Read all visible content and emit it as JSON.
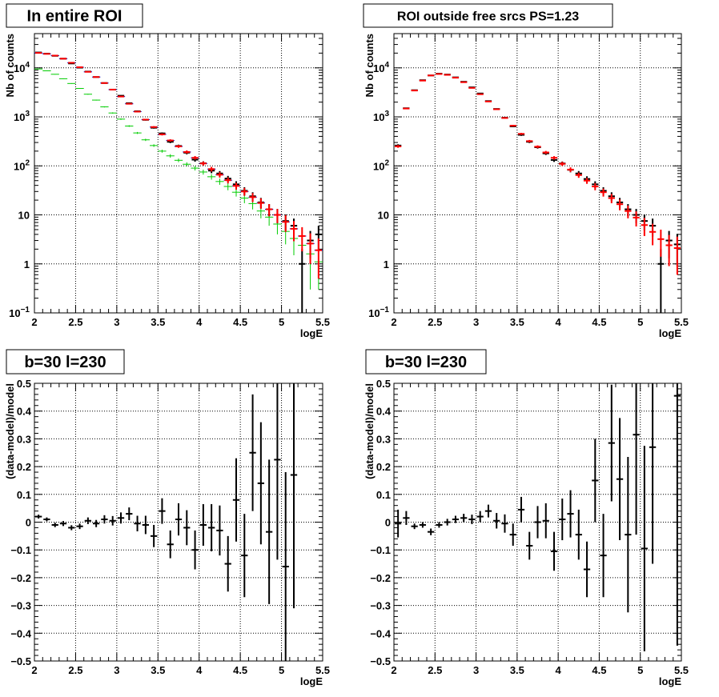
{
  "chart_data": [
    {
      "id": "tl",
      "type": "histogram-errorbars",
      "title": "In entire ROI",
      "xlabel": "logE",
      "ylabel": "Nb of counts",
      "xlim": [
        2,
        5.5
      ],
      "ylim": [
        0.1,
        50000
      ],
      "yscale": "log",
      "grid": true,
      "bin_width": 0.1,
      "xticks": [
        2,
        2.5,
        3,
        3.5,
        4,
        4.5,
        5,
        5.5
      ],
      "ytick_labels": [
        {
          "v": 0.1,
          "text": "10",
          "sup": "−1"
        },
        {
          "v": 1,
          "text": "1",
          "sup": ""
        },
        {
          "v": 10,
          "text": "10",
          "sup": ""
        },
        {
          "v": 100,
          "text": "10",
          "sup": "2"
        },
        {
          "v": 1000,
          "text": "10",
          "sup": "3"
        },
        {
          "v": 10000,
          "text": "10",
          "sup": "4"
        }
      ],
      "series": [
        {
          "color": "#00cc00",
          "x": [
            2.05,
            2.15,
            2.25,
            2.35,
            2.45,
            2.55,
            2.65,
            2.75,
            2.85,
            2.95,
            3.05,
            3.15,
            3.25,
            3.35,
            3.45,
            3.55,
            3.65,
            3.75,
            3.85,
            3.95,
            4.05,
            4.15,
            4.25,
            4.35,
            4.45,
            4.55,
            4.65,
            4.75,
            4.85,
            4.95,
            5.05,
            5.15,
            5.25,
            5.35,
            5.45
          ],
          "y": [
            9500,
            8700,
            7400,
            6000,
            4800,
            3800,
            2900,
            2200,
            1600,
            1200,
            900,
            650,
            470,
            340,
            260,
            200,
            160,
            130,
            108,
            90,
            75,
            60,
            48,
            38,
            29,
            22,
            17,
            12,
            9,
            6.5,
            4.6,
            3.3,
            2.4,
            1.6,
            1.1
          ],
          "err": [
            97,
            93,
            86,
            77,
            69,
            62,
            54,
            47,
            40,
            35,
            30,
            25,
            22,
            18,
            16,
            14,
            13,
            11,
            10,
            9.5,
            8.7,
            7.7,
            6.9,
            6.2,
            5.4,
            4.7,
            4.1,
            3.5,
            3.0,
            2.5,
            2.1,
            1.8,
            1.5,
            1.3,
            0.8
          ]
        },
        {
          "color": "#0000cc",
          "x": [
            2.05,
            2.15,
            2.25,
            2.35,
            2.45,
            2.55,
            2.65,
            2.75,
            2.85,
            2.95,
            3.05,
            3.15,
            3.25,
            3.35,
            3.45,
            3.55,
            3.65,
            3.75,
            3.85,
            3.95,
            4.05,
            4.15,
            4.25,
            4.35,
            4.45,
            4.55,
            4.65,
            4.75,
            4.85,
            4.95,
            5.05,
            5.15,
            5.25,
            5.35,
            5.45
          ],
          "y": [
            20000,
            19300,
            17800,
            15400,
            12700,
            10300,
            8300,
            6500,
            4900,
            3600,
            2600,
            1850,
            1280,
            880,
            620,
            440,
            330,
            250,
            192,
            146,
            112,
            86,
            66,
            51,
            39,
            30,
            23,
            17.5,
            13,
            10,
            7.2,
            5.2,
            3.7,
            2.6,
            1.9
          ],
          "err": [
            140,
            139,
            133,
            124,
            113,
            101,
            91,
            81,
            70,
            60,
            51,
            43,
            36,
            30,
            25,
            21,
            18,
            16,
            14,
            12,
            10.6,
            9.3,
            8.1,
            7.1,
            6.2,
            5.5,
            4.8,
            4.2,
            3.6,
            3.2,
            2.7,
            2.3,
            1.9,
            1.6,
            1.4
          ]
        },
        {
          "color": "#000000",
          "x": [
            2.05,
            2.15,
            2.25,
            2.35,
            2.45,
            2.55,
            2.65,
            2.75,
            2.85,
            2.95,
            3.05,
            3.15,
            3.25,
            3.35,
            3.45,
            3.55,
            3.65,
            3.75,
            3.85,
            3.95,
            4.05,
            4.15,
            4.25,
            4.35,
            4.45,
            4.55,
            4.65,
            4.75,
            4.85,
            4.95,
            5.05,
            5.15,
            5.25,
            5.35,
            5.45
          ],
          "y": [
            20600,
            19500,
            17600,
            15400,
            12300,
            10100,
            8400,
            6500,
            4900,
            3600,
            2700,
            1900,
            1300,
            870,
            600,
            460,
            310,
            255,
            186,
            134,
            113,
            80,
            70,
            55,
            42,
            31,
            24,
            18,
            13,
            10,
            7.5,
            6,
            1,
            3,
            4
          ],
          "err": [
            143,
            140,
            133,
            124,
            111,
            100,
            92,
            81,
            70,
            60,
            52,
            44,
            36,
            29,
            24,
            21,
            18,
            16,
            14,
            12,
            11,
            9,
            8.4,
            7.4,
            6.5,
            5.6,
            4.9,
            4.2,
            3.6,
            3.2,
            2.7,
            2.4,
            1.0,
            1.7,
            2.0
          ]
        },
        {
          "color": "#ff0000",
          "x": [
            2.05,
            2.15,
            2.25,
            2.35,
            2.45,
            2.55,
            2.65,
            2.75,
            2.85,
            2.95,
            3.05,
            3.15,
            3.25,
            3.35,
            3.45,
            3.55,
            3.65,
            3.75,
            3.85,
            3.95,
            4.05,
            4.15,
            4.25,
            4.35,
            4.45,
            4.55,
            4.65,
            4.75,
            4.85,
            4.95,
            5.05,
            5.15,
            5.25,
            5.35,
            5.45
          ],
          "y": [
            20200,
            19300,
            17800,
            15400,
            12700,
            10300,
            8300,
            6500,
            4900,
            3600,
            2600,
            1850,
            1280,
            880,
            620,
            440,
            330,
            250,
            192,
            146,
            112,
            86,
            66,
            51,
            39,
            30,
            23,
            17.5,
            13,
            10,
            7.2,
            5.2,
            3.7,
            2.6,
            1.9
          ],
          "err": [
            140,
            139,
            133,
            124,
            113,
            101,
            91,
            81,
            70,
            60,
            51,
            43,
            36,
            30,
            25,
            21,
            18,
            16,
            14,
            12,
            10.6,
            9.3,
            8.1,
            7.1,
            6.2,
            5.5,
            4.8,
            4.2,
            3.6,
            3.2,
            2.7,
            2.3,
            1.9,
            1.6,
            1.4
          ]
        }
      ]
    },
    {
      "id": "tr",
      "type": "histogram-errorbars",
      "title": "ROI outside free srcs PS=1.23",
      "xlabel": "logE",
      "ylabel": "Nb of counts",
      "xlim": [
        2,
        5.5
      ],
      "ylim": [
        0.1,
        50000
      ],
      "yscale": "log",
      "grid": true,
      "bin_width": 0.1,
      "xticks": [
        2,
        2.5,
        3,
        3.5,
        4,
        4.5,
        5,
        5.5
      ],
      "ytick_labels": [
        {
          "v": 0.1,
          "text": "10",
          "sup": "−1"
        },
        {
          "v": 1,
          "text": "1",
          "sup": ""
        },
        {
          "v": 10,
          "text": "10",
          "sup": ""
        },
        {
          "v": 100,
          "text": "10",
          "sup": "2"
        },
        {
          "v": 1000,
          "text": "10",
          "sup": "3"
        },
        {
          "v": 10000,
          "text": "10",
          "sup": "4"
        }
      ],
      "series": [
        {
          "color": "#000000",
          "x": [
            2.05,
            2.15,
            2.25,
            2.35,
            2.45,
            2.55,
            2.65,
            2.75,
            2.85,
            2.95,
            3.05,
            3.15,
            3.25,
            3.35,
            3.45,
            3.55,
            3.65,
            3.75,
            3.85,
            3.95,
            4.05,
            4.15,
            4.25,
            4.35,
            4.45,
            4.55,
            4.65,
            4.75,
            4.85,
            4.95,
            5.05,
            5.15,
            5.25,
            5.35,
            5.45
          ],
          "y": [
            260,
            1500,
            3500,
            5600,
            7000,
            7600,
            7300,
            6400,
            5200,
            4000,
            3000,
            2100,
            1450,
            960,
            640,
            430,
            310,
            240,
            180,
            132,
            112,
            83,
            70,
            54,
            42,
            31,
            24,
            18,
            13,
            10,
            7.5,
            6,
            1,
            3,
            2.5
          ],
          "err": [
            16,
            39,
            59,
            75,
            84,
            87,
            85,
            80,
            72,
            63,
            55,
            46,
            38,
            31,
            25,
            21,
            18,
            15,
            13,
            11.5,
            10.6,
            9.1,
            8.4,
            7.3,
            6.5,
            5.6,
            4.9,
            4.2,
            3.6,
            3.2,
            2.7,
            2.4,
            1.0,
            1.7,
            1.6
          ]
        },
        {
          "color": "#ff0000",
          "x": [
            2.05,
            2.15,
            2.25,
            2.35,
            2.45,
            2.55,
            2.65,
            2.75,
            2.85,
            2.95,
            3.05,
            3.15,
            3.25,
            3.35,
            3.45,
            3.55,
            3.65,
            3.75,
            3.85,
            3.95,
            4.05,
            4.15,
            4.25,
            4.35,
            4.45,
            4.55,
            4.65,
            4.75,
            4.85,
            4.95,
            5.05,
            5.15,
            5.25,
            5.35,
            5.45
          ],
          "y": [
            250,
            1480,
            3450,
            5500,
            7000,
            7500,
            7200,
            6300,
            5100,
            3900,
            2900,
            2060,
            1430,
            950,
            660,
            450,
            320,
            246,
            188,
            146,
            110,
            84,
            65,
            50,
            38,
            29,
            22,
            16.5,
            12,
            8.8,
            6.2,
            4.5,
            3.2,
            2.4,
            2.1
          ],
          "err": [
            16,
            38,
            59,
            74,
            84,
            87,
            85,
            79,
            71,
            62,
            54,
            45,
            38,
            31,
            26,
            21,
            18,
            15.7,
            13.7,
            12,
            10.5,
            9.2,
            8,
            7,
            6.2,
            5.4,
            4.7,
            4.1,
            3.5,
            3,
            2.5,
            2.1,
            1.8,
            1.5,
            1.5
          ]
        }
      ]
    },
    {
      "id": "bl",
      "type": "errorbars",
      "title": "b=30 l=230",
      "xlabel": "logE",
      "ylabel": "(data-model)/model",
      "xlim": [
        2,
        5.5
      ],
      "ylim": [
        -0.5,
        0.5
      ],
      "yscale": "linear",
      "grid": true,
      "bin_width": 0.1,
      "xticks": [
        2,
        2.5,
        3,
        3.5,
        4,
        4.5,
        5,
        5.5
      ],
      "yticks": [
        -0.5,
        -0.4,
        -0.3,
        -0.2,
        -0.1,
        0,
        0.1,
        0.2,
        0.3,
        0.4,
        0.5
      ],
      "ytick_text": [
        "−0.5",
        "−0.4",
        "−0.3",
        "−0.2",
        "−0.1",
        "0",
        "0.1",
        "0.2",
        "0.3",
        "0.4",
        "0.5"
      ],
      "series": [
        {
          "color": "#000000",
          "x": [
            2.05,
            2.15,
            2.25,
            2.35,
            2.45,
            2.55,
            2.65,
            2.75,
            2.85,
            2.95,
            3.05,
            3.15,
            3.25,
            3.35,
            3.45,
            3.55,
            3.65,
            3.75,
            3.85,
            3.95,
            4.05,
            4.15,
            4.25,
            4.35,
            4.45,
            4.55,
            4.65,
            4.75,
            4.85,
            4.95,
            5.05,
            5.15
          ],
          "y": [
            0.02,
            0.01,
            -0.01,
            -0.005,
            -0.02,
            -0.015,
            0.005,
            -0.005,
            0.01,
            0.005,
            0.015,
            0.03,
            -0.005,
            -0.01,
            -0.05,
            0.04,
            -0.08,
            0.01,
            -0.02,
            -0.1,
            -0.01,
            -0.02,
            -0.03,
            -0.15,
            0.08,
            -0.12,
            0.25,
            0.14,
            -0.035,
            0.225,
            -0.16,
            0.17
          ],
          "err": [
            0.007,
            0.007,
            0.008,
            0.009,
            0.009,
            0.01,
            0.012,
            0.013,
            0.015,
            0.017,
            0.02,
            0.023,
            0.028,
            0.033,
            0.04,
            0.046,
            0.05,
            0.058,
            0.063,
            0.07,
            0.075,
            0.085,
            0.09,
            0.1,
            0.15,
            0.15,
            0.21,
            0.22,
            0.26,
            0.36,
            0.34,
            0.48
          ]
        }
      ]
    },
    {
      "id": "br",
      "type": "errorbars",
      "title": "b=30 l=230",
      "xlabel": "logE",
      "ylabel": "(data-model)/model",
      "xlim": [
        2,
        5.5
      ],
      "ylim": [
        -0.5,
        0.5
      ],
      "yscale": "linear",
      "grid": true,
      "bin_width": 0.1,
      "xticks": [
        2,
        2.5,
        3,
        3.5,
        4,
        4.5,
        5,
        5.5
      ],
      "yticks": [
        -0.5,
        -0.4,
        -0.3,
        -0.2,
        -0.1,
        0,
        0.1,
        0.2,
        0.3,
        0.4,
        0.5
      ],
      "ytick_text": [
        "−0.5",
        "−0.4",
        "−0.3",
        "−0.2",
        "−0.1",
        "0",
        "0.1",
        "0.2",
        "0.3",
        "0.4",
        "0.5"
      ],
      "series": [
        {
          "color": "#000000",
          "x": [
            2.05,
            2.15,
            2.25,
            2.35,
            2.45,
            2.55,
            2.65,
            2.75,
            2.85,
            2.95,
            3.05,
            3.15,
            3.25,
            3.35,
            3.45,
            3.55,
            3.65,
            3.75,
            3.85,
            3.95,
            4.05,
            4.15,
            4.25,
            4.35,
            4.45,
            4.55,
            4.65,
            4.75,
            4.85,
            4.95,
            5.05,
            5.15,
            5.45
          ],
          "y": [
            -0.005,
            0.015,
            -0.015,
            -0.01,
            -0.035,
            -0.01,
            0.0,
            0.01,
            0.015,
            0.01,
            0.02,
            0.04,
            0.005,
            -0.005,
            -0.045,
            0.045,
            -0.085,
            0.0,
            0.005,
            -0.105,
            0.01,
            0.03,
            -0.045,
            -0.17,
            0.15,
            -0.12,
            0.285,
            0.155,
            -0.045,
            0.315,
            -0.095,
            0.27,
            0.455
          ],
          "err": [
            0.05,
            0.025,
            0.01,
            0.01,
            0.012,
            0.01,
            0.012,
            0.013,
            0.015,
            0.017,
            0.02,
            0.023,
            0.028,
            0.033,
            0.04,
            0.046,
            0.05,
            0.058,
            0.063,
            0.07,
            0.075,
            0.085,
            0.09,
            0.1,
            0.15,
            0.15,
            0.21,
            0.22,
            0.28,
            0.36,
            0.37,
            0.42,
            0.9
          ]
        }
      ]
    }
  ]
}
